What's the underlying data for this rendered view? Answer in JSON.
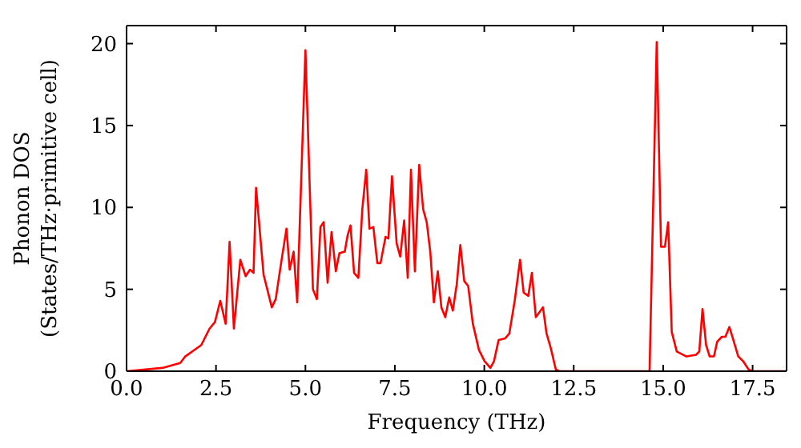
{
  "chart_data": {
    "type": "line",
    "xlabel": "Frequency (THz)",
    "ylabel": "Phonon DOS\n(States/THz·primitive cell)",
    "xlim": [
      0,
      18.45
    ],
    "ylim": [
      0,
      21.1
    ],
    "xticks": [
      {
        "value": 0,
        "label": "0.0"
      },
      {
        "value": 2.5,
        "label": "2.5"
      },
      {
        "value": 5,
        "label": "5.0"
      },
      {
        "value": 7.5,
        "label": "7.5"
      },
      {
        "value": 10,
        "label": "10.0"
      },
      {
        "value": 12.5,
        "label": "12.5"
      },
      {
        "value": 15,
        "label": "15.0"
      },
      {
        "value": 17.5,
        "label": "17.5"
      }
    ],
    "yticks": [
      0,
      5,
      10,
      15,
      20
    ],
    "marker": "none",
    "line_style": "solid",
    "x": [
      0,
      1.0,
      1.5,
      1.64,
      2.09,
      2.32,
      2.47,
      2.62,
      2.77,
      2.88,
      3.0,
      3.18,
      3.33,
      3.45,
      3.55,
      3.62,
      3.83,
      4.06,
      4.17,
      4.32,
      4.47,
      4.56,
      4.67,
      4.77,
      5.0,
      5.21,
      5.32,
      5.42,
      5.51,
      5.62,
      5.73,
      5.85,
      5.95,
      6.1,
      6.18,
      6.26,
      6.36,
      6.48,
      6.59,
      6.7,
      6.79,
      6.9,
      7.01,
      7.1,
      7.24,
      7.32,
      7.42,
      7.55,
      7.65,
      7.76,
      7.86,
      7.95,
      8.06,
      8.18,
      8.29,
      8.39,
      8.49,
      8.59,
      8.7,
      8.8,
      8.91,
      9.02,
      9.12,
      9.23,
      9.33,
      9.44,
      9.55,
      9.68,
      9.85,
      10.01,
      10.17,
      10.27,
      10.4,
      10.58,
      10.7,
      10.85,
      11.0,
      11.1,
      11.23,
      11.33,
      11.44,
      11.64,
      11.74,
      11.86,
      12.0,
      12.1,
      14.62,
      14.82,
      14.94,
      15.05,
      15.14,
      15.24,
      15.38,
      15.65,
      15.92,
      16.01,
      16.1,
      16.2,
      16.3,
      16.42,
      16.51,
      16.64,
      16.74,
      16.85,
      16.95,
      17.1,
      17.24,
      17.39,
      17.5,
      18.45
    ],
    "series": [
      {
        "color": "#ff0000",
        "values": [
          0,
          0.2,
          0.5,
          0.9,
          1.6,
          2.6,
          3.0,
          4.3,
          2.9,
          7.9,
          2.6,
          6.8,
          5.8,
          6.2,
          6.0,
          11.2,
          5.9,
          3.9,
          4.4,
          6.6,
          8.7,
          6.2,
          7.3,
          4.2,
          19.6,
          5.0,
          4.4,
          8.8,
          9.1,
          5.4,
          8.5,
          6.1,
          7.2,
          7.3,
          8.3,
          8.9,
          6.0,
          5.7,
          9.9,
          12.3,
          8.7,
          8.8,
          6.6,
          6.6,
          8.2,
          8.1,
          11.9,
          7.8,
          7.0,
          9.2,
          5.7,
          12.3,
          6.1,
          12.6,
          9.9,
          9.1,
          7.3,
          4.2,
          6.1,
          3.9,
          3.3,
          4.5,
          3.7,
          5.3,
          7.7,
          5.5,
          5.2,
          2.9,
          1.3,
          0.6,
          0.2,
          0.6,
          1.9,
          2.0,
          2.3,
          4.3,
          6.8,
          4.8,
          4.6,
          6.0,
          3.3,
          3.9,
          2.3,
          1.4,
          0.1,
          0,
          0,
          20.1,
          7.6,
          7.6,
          9.1,
          2.4,
          1.2,
          0.9,
          1.0,
          1.2,
          3.8,
          1.6,
          0.9,
          0.9,
          1.8,
          2.1,
          2.1,
          2.7,
          2.0,
          0.9,
          0.6,
          0.1,
          0,
          0
        ]
      }
    ]
  }
}
